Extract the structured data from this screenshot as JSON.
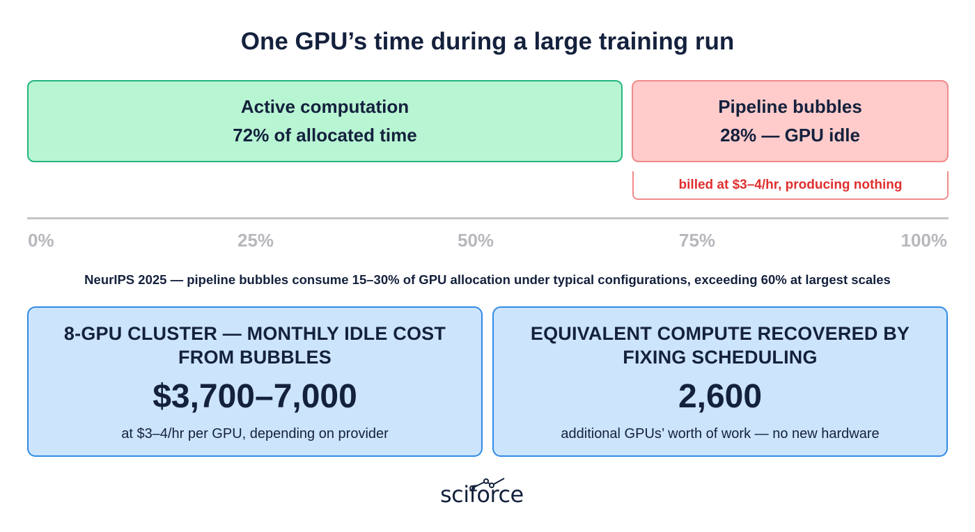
{
  "title": "One GPU’s time during a large training run",
  "timeline": {
    "active": {
      "label": "Active computation",
      "detail": "72% of allocated time",
      "share_percent": 72
    },
    "bubble": {
      "label": "Pipeline bubbles",
      "detail": "28% — GPU idle",
      "share_percent": 28,
      "note": "billed at $3–4/hr, producing nothing"
    },
    "axis_ticks": [
      "0%",
      "25%",
      "50%",
      "75%",
      "100%"
    ]
  },
  "source_note": "NeurIPS 2025 — pipeline bubbles consume 15–30% of GPU allocation under typical configurations, exceeding 60% at largest scales",
  "cards": [
    {
      "heading_line1": "8-GPU CLUSTER — MONTHLY IDLE COST",
      "heading_line2": "FROM BUBBLES",
      "value": "$3,700–7,000",
      "note": "at $3–4/hr per GPU, depending on provider"
    },
    {
      "heading_line1": "EQUIVALENT COMPUTE RECOVERED BY",
      "heading_line2": "FIXING SCHEDULING",
      "value": "2,600",
      "note": "additional GPUs’ worth of work — no new hardware"
    }
  ],
  "logo": {
    "text": "sciforce"
  },
  "colors": {
    "active_fill": "#b8f5d3",
    "active_border": "#23b57f",
    "bubble_fill": "#ffcccb",
    "bubble_border": "#f08a8a",
    "card_fill": "#cce4fc",
    "card_border": "#2f8be6",
    "alert_text": "#e02f2f"
  }
}
